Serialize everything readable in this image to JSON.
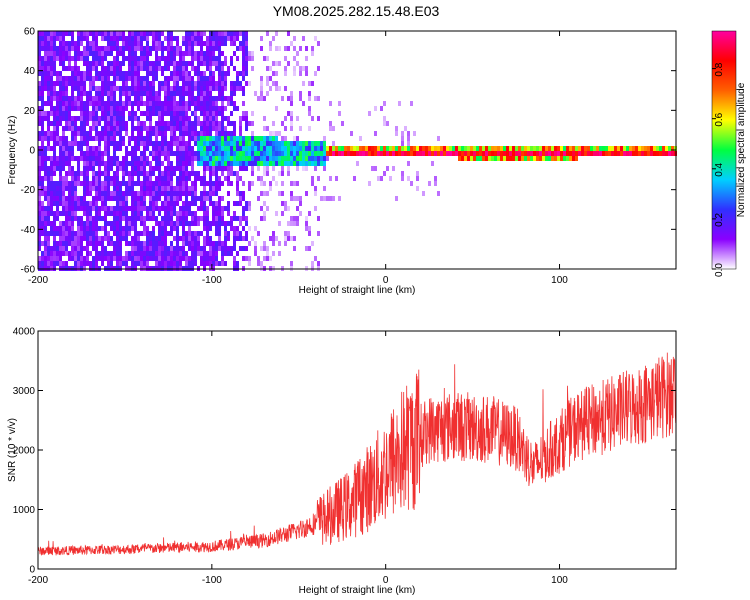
{
  "title": "YM08.2025.282.15.48.E03",
  "chart_data": [
    {
      "type": "heatmap",
      "xlabel": "Height of straight line (km)",
      "ylabel": "Frequency (Hz)",
      "xlim": [
        -200,
        167
      ],
      "ylim": [
        -60,
        60
      ],
      "xticks": [
        -200,
        -100,
        0,
        100
      ],
      "yticks": [
        60,
        40,
        20,
        0,
        -20,
        -40,
        -60
      ],
      "colorbar": {
        "label": "Normalized spectral amplitude",
        "range": [
          0,
          0.95
        ],
        "ticks": [
          "0.0",
          "0.2",
          "0.4",
          "0.6",
          "0.8"
        ],
        "colors": [
          "#ffffff",
          "#8a00ff",
          "#3030ff",
          "#00d0ff",
          "#00ff40",
          "#ffff00",
          "#ff6000",
          "#ff0000",
          "#ff00a0"
        ]
      },
      "description_values": {
        "broadband_noise_region_km": [
          -200,
          -80
        ],
        "scattered_noise_region_km": [
          -80,
          -38
        ],
        "narrow_band_center_hz": 0,
        "narrow_band_start_km": -35
      }
    },
    {
      "type": "line",
      "xlabel": "Height of straight line (km)",
      "ylabel": "SNR (10 * v/v)",
      "xlim": [
        -200,
        167
      ],
      "ylim": [
        0,
        4000
      ],
      "xticks": [
        -200,
        -100,
        0,
        100
      ],
      "yticks": [
        0,
        1000,
        2000,
        3000,
        4000
      ],
      "color": "#f03030",
      "trend": {
        "x": [
          -200,
          -150,
          -100,
          -70,
          -50,
          -35,
          -20,
          -5,
          10,
          25,
          40,
          60,
          75,
          85,
          95,
          110,
          130,
          150,
          167
        ],
        "y": [
          300,
          330,
          380,
          480,
          650,
          850,
          1100,
          1500,
          2000,
          2350,
          2400,
          2350,
          2200,
          1700,
          2000,
          2400,
          2600,
          2800,
          3000
        ]
      }
    }
  ]
}
